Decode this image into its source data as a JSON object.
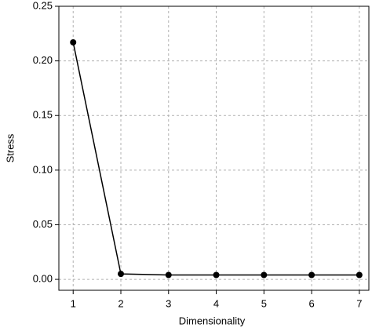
{
  "chart_data": {
    "type": "line",
    "x_label": "Dimensionality",
    "y_label": "Stress",
    "x": [
      1,
      2,
      3,
      4,
      5,
      6,
      7
    ],
    "series": [
      {
        "name": "Stress",
        "color": "#000000",
        "values": [
          0.217,
          0.005,
          0.004,
          0.004,
          0.004,
          0.004,
          0.004
        ]
      }
    ],
    "xlim": [
      0.7,
      7.2
    ],
    "ylim": [
      -0.01,
      0.25
    ],
    "xticks": [
      1,
      2,
      3,
      4,
      5,
      6,
      7
    ],
    "yticks": [
      {
        "value": 0,
        "label": "0.00"
      },
      {
        "value": 0.05,
        "label": "0.05"
      },
      {
        "value": 0.1,
        "label": "0.10"
      },
      {
        "value": 0.15,
        "label": "0.15"
      },
      {
        "value": 0.2,
        "label": "0.20"
      },
      {
        "value": 0.25,
        "label": "0.25"
      }
    ],
    "grid": true
  }
}
